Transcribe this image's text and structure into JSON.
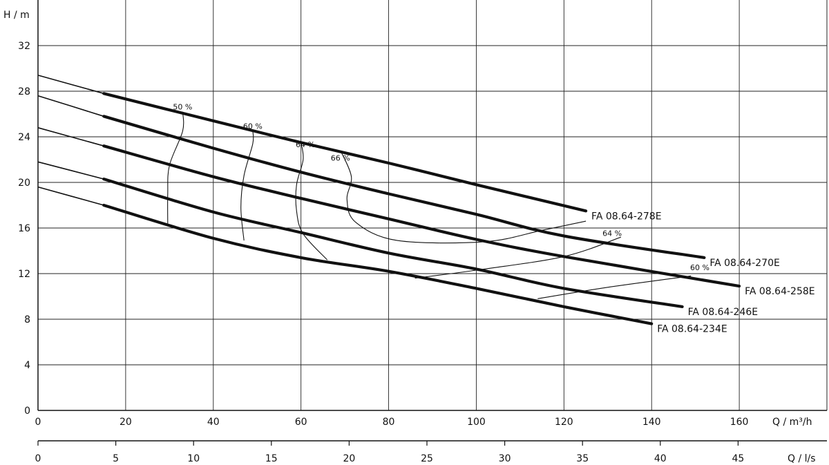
{
  "chart_data": {
    "type": "line",
    "y_axis_label": "H / m",
    "x_axis_label": "Q / m³/h",
    "x2_axis_label": "Q / l/s",
    "xlim": [
      0,
      180
    ],
    "ylim": [
      0,
      36
    ],
    "x2lim": [
      0,
      50
    ],
    "x_ticks": [
      "0",
      "20",
      "40",
      "60",
      "80",
      "100",
      "120",
      "140",
      "160"
    ],
    "x2_ticks": [
      "0",
      "5",
      "10",
      "15",
      "20",
      "25",
      "30",
      "35",
      "40",
      "45"
    ],
    "y_ticks": [
      "0",
      "4",
      "8",
      "12",
      "16",
      "20",
      "24",
      "28",
      "32"
    ],
    "grid": true,
    "series": [
      {
        "name": "FA 08.64-278E",
        "thin_points": [
          [
            0,
            29.4
          ],
          [
            15,
            27.8
          ]
        ],
        "points": [
          [
            15,
            27.8
          ],
          [
            40,
            25.4
          ],
          [
            60,
            23.5
          ],
          [
            80,
            21.7
          ],
          [
            100,
            19.8
          ],
          [
            125,
            17.5
          ]
        ]
      },
      {
        "name": "FA 08.64-270E",
        "thin_points": [
          [
            0,
            27.6
          ],
          [
            15,
            25.8
          ]
        ],
        "points": [
          [
            15,
            25.8
          ],
          [
            40,
            23.0
          ],
          [
            60,
            20.9
          ],
          [
            80,
            19.0
          ],
          [
            100,
            17.2
          ],
          [
            120,
            15.3
          ],
          [
            152,
            13.4
          ]
        ]
      },
      {
        "name": "FA 08.64-258E",
        "thin_points": [
          [
            0,
            24.8
          ],
          [
            15,
            23.2
          ]
        ],
        "points": [
          [
            15,
            23.2
          ],
          [
            40,
            20.5
          ],
          [
            60,
            18.6
          ],
          [
            80,
            16.8
          ],
          [
            100,
            15.0
          ],
          [
            120,
            13.5
          ],
          [
            160,
            10.9
          ]
        ]
      },
      {
        "name": "FA 08.64-246E",
        "thin_points": [
          [
            0,
            21.8
          ],
          [
            15,
            20.3
          ]
        ],
        "points": [
          [
            15,
            20.3
          ],
          [
            40,
            17.4
          ],
          [
            60,
            15.6
          ],
          [
            80,
            13.8
          ],
          [
            100,
            12.4
          ],
          [
            120,
            10.7
          ],
          [
            147,
            9.1
          ]
        ]
      },
      {
        "name": "FA 08.64-234E",
        "thin_points": [
          [
            0,
            19.6
          ],
          [
            15,
            18.0
          ]
        ],
        "points": [
          [
            15,
            18.0
          ],
          [
            40,
            15.1
          ],
          [
            60,
            13.4
          ],
          [
            80,
            12.2
          ],
          [
            100,
            10.7
          ],
          [
            120,
            9.1
          ],
          [
            140,
            7.6
          ]
        ]
      }
    ],
    "efficiency_lines": [
      {
        "label": "50 %",
        "label_at": [
          33,
          26.4
        ],
        "points": [
          [
            33,
            26.2
          ],
          [
            33,
            24.5
          ],
          [
            30,
            21.5
          ],
          [
            29.6,
            19.0
          ],
          [
            29.6,
            16.4
          ]
        ]
      },
      {
        "label": "60 %",
        "label_at": [
          49,
          24.7
        ],
        "points": [
          [
            49,
            24.5
          ],
          [
            49,
            23.4
          ],
          [
            47,
            20.6
          ],
          [
            46.3,
            17.8
          ],
          [
            47,
            14.9
          ]
        ]
      },
      {
        "label": "64 %",
        "label_at": [
          61,
          23.1
        ],
        "points": [
          [
            60,
            23.5
          ],
          [
            60.5,
            22.0
          ],
          [
            59,
            19.8
          ],
          [
            59,
            17.5
          ],
          [
            60.5,
            15.5
          ],
          [
            66,
            13.2
          ]
        ]
      },
      {
        "label": "66 %",
        "label_at": [
          69,
          21.9
        ],
        "points": [
          [
            69,
            22.8
          ],
          [
            71.5,
            20.5
          ],
          [
            70.5,
            18.5
          ],
          [
            72.5,
            16.5
          ],
          [
            82,
            14.9
          ],
          [
            102,
            14.8
          ],
          [
            115,
            15.8
          ],
          [
            125,
            16.6
          ]
        ]
      },
      {
        "label": "64 %",
        "label_at": [
          131,
          15.3
        ],
        "points": [
          [
            86,
            11.6
          ],
          [
            100,
            12.3
          ],
          [
            120,
            13.5
          ],
          [
            133,
            15.2
          ]
        ]
      },
      {
        "label": "60 %",
        "label_at": [
          151,
          12.3
        ],
        "points": [
          [
            114,
            9.8
          ],
          [
            130,
            10.8
          ],
          [
            149,
            11.8
          ]
        ]
      }
    ]
  }
}
